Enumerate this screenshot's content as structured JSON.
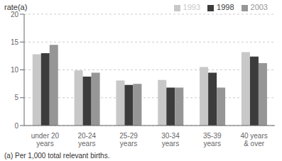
{
  "chart_data": {
    "type": "bar",
    "y_label": "rate(a)",
    "annotations": [
      "(a) Per 1,000 total relevant births."
    ],
    "categories": [
      "under 20\nyears",
      "20-24\nyears",
      "25-29\nyears",
      "30-34\nyears",
      "35-39\nyears",
      "40 years\n& over"
    ],
    "series": [
      {
        "name": "1993",
        "color": "#c8c8c8",
        "values": [
          12.8,
          9.9,
          8.1,
          8.2,
          10.5,
          13.2
        ]
      },
      {
        "name": "1998",
        "color": "#3c3c3c",
        "values": [
          13.0,
          8.8,
          7.3,
          6.8,
          9.5,
          12.4
        ]
      },
      {
        "name": "2003",
        "color": "#969696",
        "values": [
          14.5,
          9.5,
          7.5,
          6.8,
          6.8,
          11.2
        ]
      }
    ],
    "ylim": [
      0,
      20
    ],
    "yticks": [
      0,
      5,
      10,
      15,
      20
    ],
    "grid": true,
    "legend": "upper right"
  }
}
